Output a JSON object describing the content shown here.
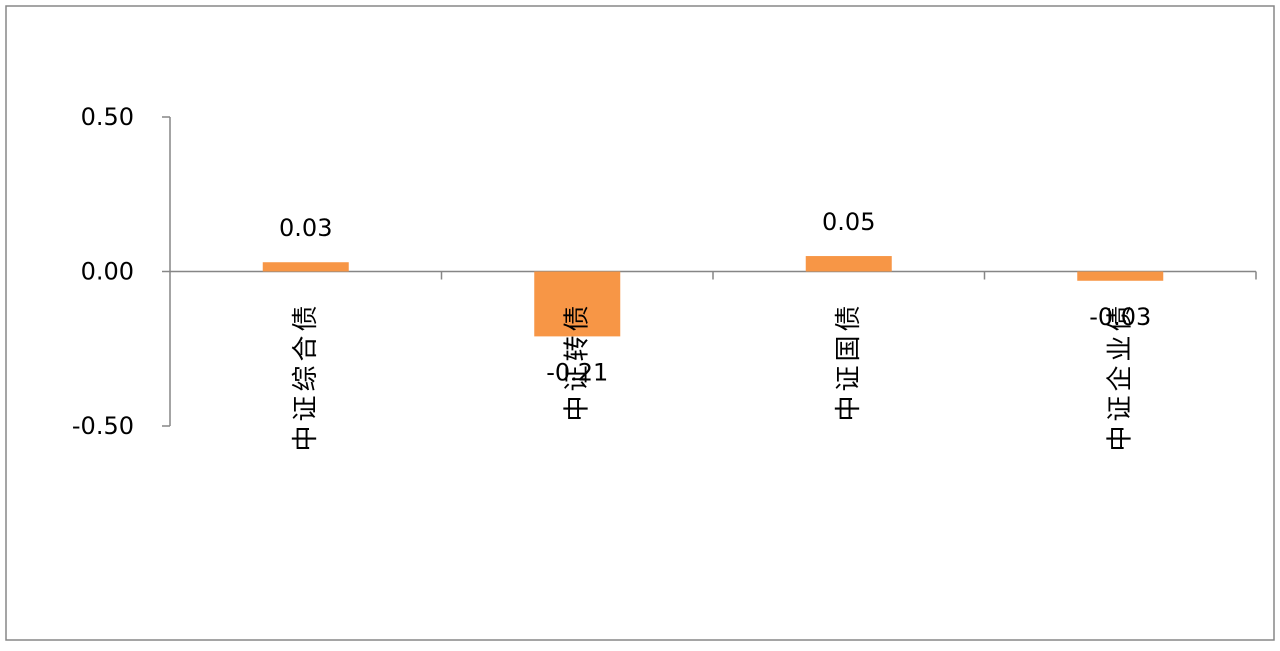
{
  "chart_data": {
    "type": "bar",
    "categories": [
      "中证综合债",
      "中证转债",
      "中证国债",
      "中证企业债"
    ],
    "values": [
      0.03,
      -0.21,
      0.05,
      -0.03
    ],
    "data_labels": [
      "0.03",
      "-0.21",
      "0.05",
      "-0.03"
    ],
    "ylim": [
      -0.5,
      0.5
    ],
    "yticks": [
      0.5,
      0.0,
      -0.5
    ],
    "ytick_labels": [
      "0.50",
      "0.00",
      "-0.50"
    ],
    "title": "",
    "xlabel": "",
    "ylabel": "",
    "grid": false,
    "legend": "none",
    "colors": {
      "bar": "#F79646",
      "axis": "#868686",
      "border": "#878787",
      "text": "#000000"
    }
  }
}
